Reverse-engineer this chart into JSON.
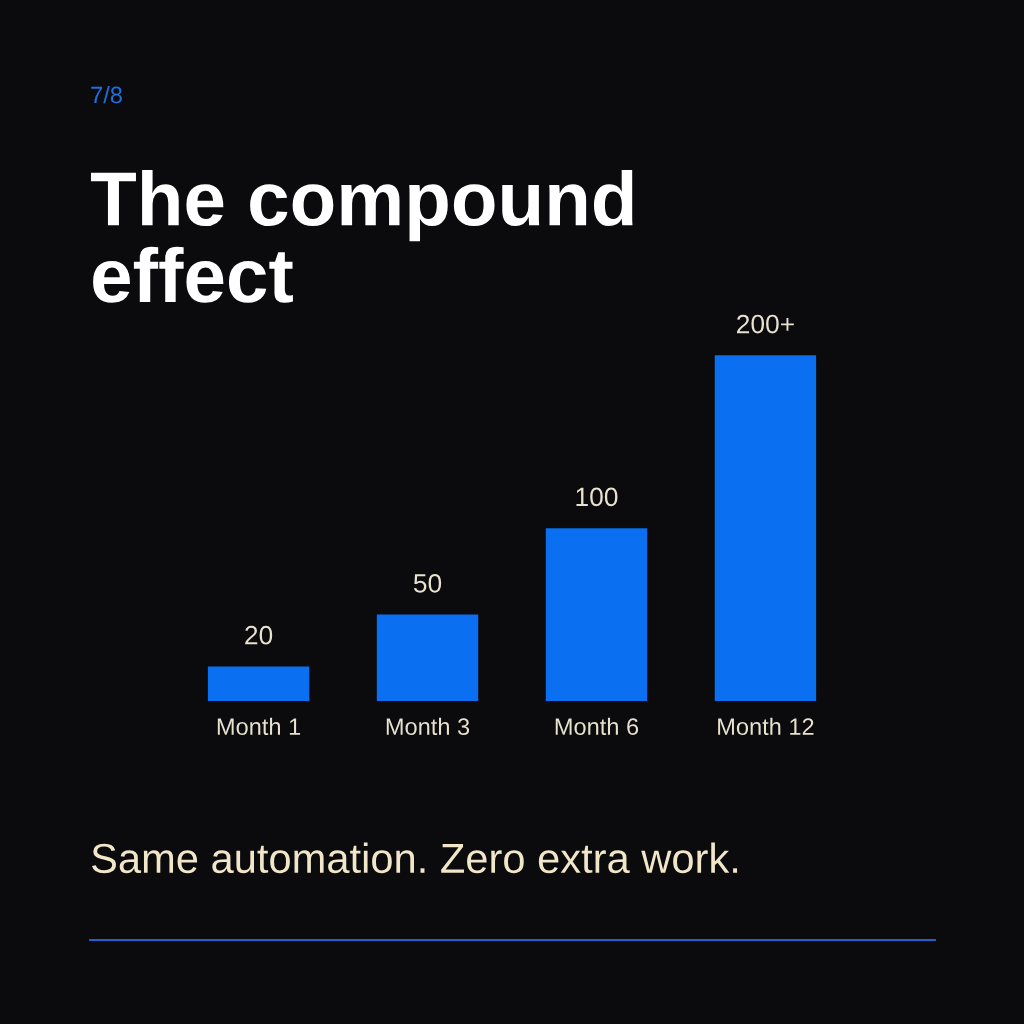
{
  "chart_data": {
    "type": "bar",
    "title": "The compound\neffect",
    "categories": [
      "Month 1",
      "Month 3",
      "Month 6",
      "Month 12"
    ],
    "values": [
      20,
      50,
      100,
      200
    ],
    "value_labels": [
      "20",
      "50",
      "100",
      "200+"
    ],
    "color": "#0a6ff0",
    "annotations": [
      "7/8",
      "Same automation. Zero extra work."
    ]
  }
}
